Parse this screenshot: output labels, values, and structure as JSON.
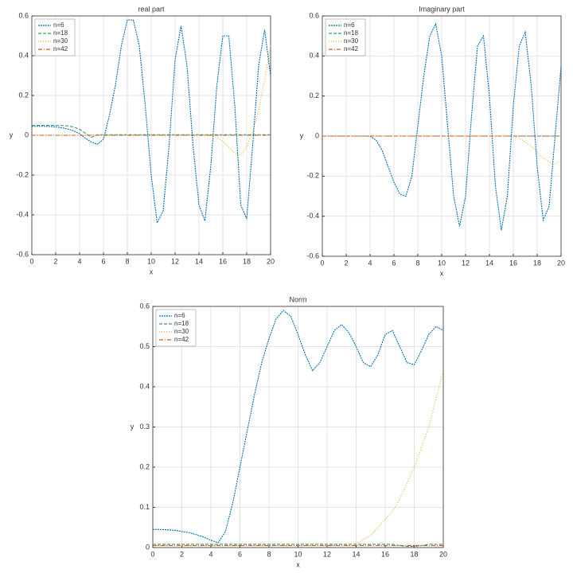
{
  "chart_data": [
    {
      "type": "line",
      "title": "real part",
      "x_label": "x",
      "y_label": "y",
      "x": [
        0,
        0.5,
        1,
        1.5,
        2,
        2.5,
        3,
        3.5,
        4,
        4.5,
        5,
        5.5,
        6,
        6.5,
        7,
        7.5,
        8,
        8.5,
        9,
        9.5,
        10,
        10.5,
        11,
        11.5,
        12,
        12.5,
        13,
        13.5,
        14,
        14.5,
        15,
        15.5,
        16,
        16.5,
        17,
        17.5,
        18,
        18.5,
        19,
        19.5,
        20
      ],
      "xlim": [
        0,
        20
      ],
      "xticks": [
        0,
        2,
        4,
        6,
        8,
        10,
        12,
        14,
        16,
        18,
        20
      ],
      "ylim": [
        -0.6,
        0.6
      ],
      "yticks": [
        -0.6,
        -0.4,
        -0.2,
        0,
        0.2,
        0.4,
        0.6
      ],
      "grid": true,
      "legend": "upper left",
      "series": [
        {
          "name": "n=6",
          "color": "#0072bd",
          "values": [
            0.045,
            0.045,
            0.045,
            0.044,
            0.042,
            0.038,
            0.032,
            0.022,
            0.008,
            -0.015,
            -0.035,
            -0.045,
            -0.02,
            0.1,
            0.25,
            0.45,
            0.58,
            0.58,
            0.45,
            0.15,
            -0.2,
            -0.44,
            -0.38,
            -0.05,
            0.38,
            0.55,
            0.35,
            -0.05,
            -0.35,
            -0.43,
            -0.15,
            0.25,
            0.5,
            0.5,
            0.15,
            -0.35,
            -0.42,
            -0.05,
            0.35,
            0.53,
            0.3
          ]
        },
        {
          "name": "n=18",
          "color": "#3a9a6e",
          "values": [
            0.05,
            0.05,
            0.05,
            0.05,
            0.05,
            0.049,
            0.047,
            0.042,
            0.03,
            0.01,
            -0.01,
            0.003,
            0.003,
            0.003,
            0.003,
            0.003,
            0.003,
            0.003,
            0.003,
            0.003,
            0.003,
            0.003,
            0.003,
            0.003,
            0.003,
            0.003,
            0.003,
            0.003,
            0.003,
            0.003,
            0.003,
            0.003,
            0.003,
            0.003,
            0.003,
            0.003,
            0.003,
            0.003,
            0.003,
            0.003,
            0.003
          ]
        },
        {
          "name": "n=30",
          "color": "#edb120",
          "values": [
            0,
            0,
            0,
            0,
            0,
            0,
            0,
            0,
            0,
            0,
            0,
            0,
            0,
            0,
            0,
            0,
            0,
            0,
            0,
            0,
            0,
            0,
            0,
            0,
            0,
            0,
            0,
            0,
            0,
            0,
            0,
            -0.01,
            -0.03,
            -0.06,
            -0.09,
            -0.1,
            -0.06,
            0.02,
            0.12,
            0.28,
            0.45
          ]
        },
        {
          "name": "n=42",
          "color": "#d95319",
          "values": [
            0,
            0,
            0,
            0,
            0,
            0,
            0,
            0,
            0,
            0,
            0,
            0,
            0,
            0,
            0,
            0,
            0,
            0,
            0,
            0,
            0,
            0,
            0,
            0,
            0,
            0,
            0,
            0,
            0,
            0,
            0,
            0,
            0,
            0,
            0,
            0,
            0,
            0,
            0,
            0,
            0
          ]
        }
      ]
    },
    {
      "type": "line",
      "title": "Imaginary part",
      "x_label": "x",
      "y_label": "y",
      "x": [
        0,
        0.5,
        1,
        1.5,
        2,
        2.5,
        3,
        3.5,
        4,
        4.5,
        5,
        5.5,
        6,
        6.5,
        7,
        7.5,
        8,
        8.5,
        9,
        9.5,
        10,
        10.5,
        11,
        11.5,
        12,
        12.5,
        13,
        13.5,
        14,
        14.5,
        15,
        15.5,
        16,
        16.5,
        17,
        17.5,
        18,
        18.5,
        19,
        19.5,
        20
      ],
      "xlim": [
        0,
        20
      ],
      "xticks": [
        0,
        2,
        4,
        6,
        8,
        10,
        12,
        14,
        16,
        18,
        20
      ],
      "ylim": [
        -0.6,
        0.6
      ],
      "yticks": [
        -0.6,
        -0.4,
        -0.2,
        0,
        0.2,
        0.4,
        0.6
      ],
      "grid": true,
      "legend": "upper left",
      "series": [
        {
          "name": "n=6",
          "color": "#0072bd",
          "values": [
            0,
            0,
            0,
            0,
            0,
            0,
            0,
            0,
            0,
            -0.02,
            -0.07,
            -0.15,
            -0.23,
            -0.29,
            -0.3,
            -0.2,
            0.05,
            0.3,
            0.5,
            0.56,
            0.4,
            0.05,
            -0.3,
            -0.45,
            -0.3,
            0.1,
            0.45,
            0.5,
            0.2,
            -0.25,
            -0.47,
            -0.3,
            0.15,
            0.45,
            0.52,
            0.25,
            -0.15,
            -0.42,
            -0.35,
            0,
            0.35
          ]
        },
        {
          "name": "n=18",
          "color": "#3a9a6e",
          "values": [
            0,
            0,
            0,
            0,
            0,
            0,
            0,
            0,
            0,
            0,
            0,
            0,
            0,
            0,
            0,
            0,
            0,
            0,
            0,
            0,
            0,
            0,
            0,
            0,
            0,
            0,
            0,
            0,
            0,
            0,
            0,
            0,
            0,
            0,
            0,
            0,
            0,
            0,
            0,
            0,
            0
          ]
        },
        {
          "name": "n=30",
          "color": "#edb120",
          "values": [
            0,
            0,
            0,
            0,
            0,
            0,
            0,
            0,
            0,
            0,
            0,
            0,
            0,
            0,
            0,
            0,
            0,
            0,
            0,
            0,
            0,
            0,
            0,
            0,
            0,
            0,
            0,
            0,
            0,
            0,
            0,
            0,
            0,
            -0.01,
            -0.03,
            -0.05,
            -0.08,
            -0.11,
            -0.13,
            -0.14,
            -0.12
          ]
        },
        {
          "name": "n=42",
          "color": "#d95319",
          "values": [
            0,
            0,
            0,
            0,
            0,
            0,
            0,
            0,
            0,
            0,
            0,
            0,
            0,
            0,
            0,
            0,
            0,
            0,
            0,
            0,
            0,
            0,
            0,
            0,
            0,
            0,
            0,
            0,
            0,
            0,
            0,
            0,
            0,
            0,
            0,
            0,
            0,
            0,
            0,
            0,
            0
          ]
        }
      ]
    },
    {
      "type": "line",
      "title": "Norm",
      "x_label": "x",
      "y_label": "y",
      "x": [
        0,
        0.5,
        1,
        1.5,
        2,
        2.5,
        3,
        3.5,
        4,
        4.5,
        5,
        5.5,
        6,
        6.5,
        7,
        7.5,
        8,
        8.5,
        9,
        9.5,
        10,
        10.5,
        11,
        11.5,
        12,
        12.5,
        13,
        13.5,
        14,
        14.5,
        15,
        15.5,
        16,
        16.5,
        17,
        17.5,
        18,
        18.5,
        19,
        19.5,
        20
      ],
      "xlim": [
        0,
        20
      ],
      "xticks": [
        0,
        2,
        4,
        6,
        8,
        10,
        12,
        14,
        16,
        18,
        20
      ],
      "ylim": [
        0,
        0.6
      ],
      "yticks": [
        0,
        0.1,
        0.2,
        0.3,
        0.4,
        0.5,
        0.6
      ],
      "grid": true,
      "legend": "upper left",
      "series": [
        {
          "name": "n=6",
          "color": "#0072bd",
          "values": [
            0.045,
            0.045,
            0.044,
            0.043,
            0.04,
            0.037,
            0.032,
            0.026,
            0.018,
            0.012,
            0.04,
            0.11,
            0.2,
            0.29,
            0.38,
            0.46,
            0.52,
            0.57,
            0.59,
            0.575,
            0.53,
            0.48,
            0.44,
            0.46,
            0.5,
            0.54,
            0.555,
            0.535,
            0.5,
            0.46,
            0.45,
            0.48,
            0.53,
            0.54,
            0.5,
            0.46,
            0.455,
            0.49,
            0.53,
            0.55,
            0.54
          ]
        },
        {
          "name": "n=18",
          "color": "#3a9a6e",
          "values": [
            0.008,
            0.008,
            0.008,
            0.008,
            0.008,
            0.008,
            0.008,
            0.008,
            0.008,
            0.008,
            0.008,
            0.008,
            0.008,
            0.008,
            0.008,
            0.008,
            0.008,
            0.008,
            0.008,
            0.008,
            0.008,
            0.008,
            0.008,
            0.008,
            0.008,
            0.008,
            0.008,
            0.008,
            0.008,
            0.008,
            0.008,
            0.008,
            0.008,
            0.008,
            0.005,
            0.003,
            0.003,
            0.005,
            0.008,
            0.008,
            0.008
          ]
        },
        {
          "name": "n=30",
          "color": "#edb120",
          "values": [
            0.005,
            0.005,
            0.005,
            0.005,
            0.005,
            0.005,
            0.005,
            0.005,
            0.005,
            0.005,
            0.005,
            0.005,
            0.005,
            0.005,
            0.005,
            0.005,
            0.005,
            0.005,
            0.005,
            0.005,
            0.005,
            0.005,
            0.005,
            0.005,
            0.005,
            0.005,
            0.005,
            0.005,
            0.01,
            0.02,
            0.03,
            0.05,
            0.07,
            0.09,
            0.12,
            0.16,
            0.2,
            0.25,
            0.3,
            0.37,
            0.44
          ]
        },
        {
          "name": "n=42",
          "color": "#d95319",
          "values": [
            0.005,
            0.005,
            0.005,
            0.005,
            0.005,
            0.005,
            0.005,
            0.005,
            0.005,
            0.005,
            0.005,
            0.005,
            0.005,
            0.005,
            0.005,
            0.005,
            0.005,
            0.005,
            0.005,
            0.005,
            0.005,
            0.005,
            0.005,
            0.005,
            0.005,
            0.005,
            0.005,
            0.005,
            0.005,
            0.005,
            0.005,
            0.005,
            0.005,
            0.005,
            0.005,
            0.005,
            0.005,
            0.005,
            0.005,
            0.005,
            0.005
          ]
        }
      ]
    }
  ]
}
